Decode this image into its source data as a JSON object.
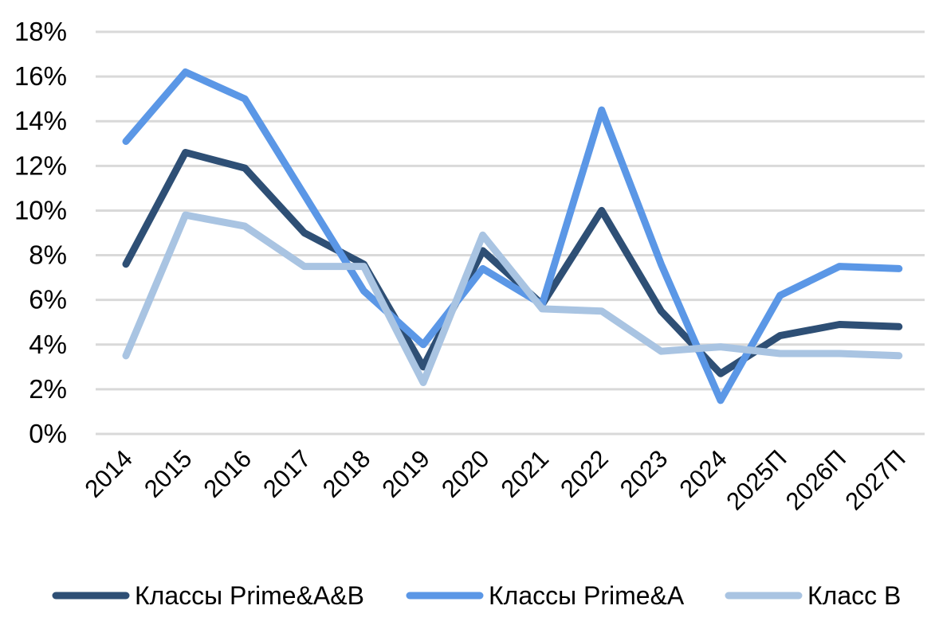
{
  "chart_data": {
    "type": "line",
    "categories": [
      "2014",
      "2015",
      "2016",
      "2017",
      "2018",
      "2019",
      "2020",
      "2021",
      "2022",
      "2023",
      "2024",
      "2025П",
      "2026П",
      "2027П"
    ],
    "ylim": [
      0,
      18
    ],
    "y_ticks": [
      0,
      2,
      4,
      6,
      8,
      10,
      12,
      14,
      16,
      18
    ],
    "y_tick_labels": [
      "0%",
      "2%",
      "4%",
      "6%",
      "8%",
      "10%",
      "12%",
      "14%",
      "16%",
      "18%"
    ],
    "grid": true,
    "legend_position": "bottom",
    "series": [
      {
        "name": "Классы Prime&A&B",
        "color": "#2e4f75",
        "values": [
          7.6,
          12.6,
          11.9,
          9.0,
          7.6,
          3.0,
          8.2,
          5.8,
          10.0,
          5.5,
          2.7,
          4.4,
          4.9,
          4.8
        ]
      },
      {
        "name": "Классы Prime&A",
        "color": "#5b97e6",
        "values": [
          13.1,
          16.2,
          15.0,
          10.7,
          6.4,
          4.0,
          7.4,
          5.8,
          14.5,
          7.6,
          1.5,
          6.2,
          7.5,
          7.4
        ]
      },
      {
        "name": "Класс B",
        "color": "#a9c4e2",
        "values": [
          3.5,
          9.8,
          9.3,
          7.5,
          7.5,
          2.3,
          8.9,
          5.6,
          5.5,
          3.7,
          3.9,
          3.6,
          3.6,
          3.5
        ]
      }
    ]
  }
}
